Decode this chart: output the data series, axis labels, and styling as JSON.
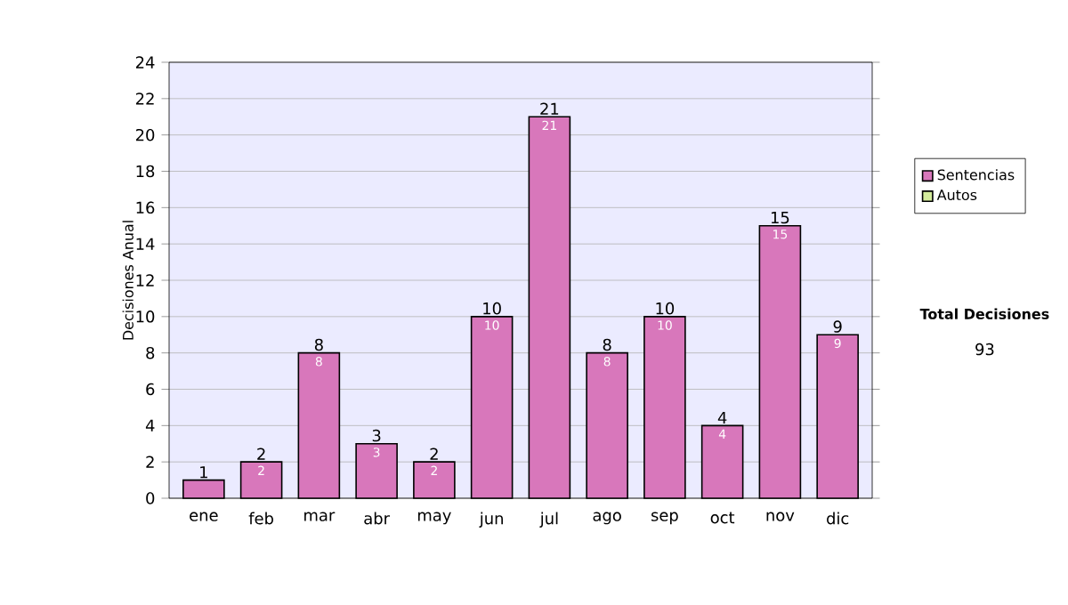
{
  "chart_data": {
    "type": "bar",
    "ylabel": "Decisiones Anual",
    "categories": [
      "ene",
      "feb",
      "mar",
      "abr",
      "may",
      "jun",
      "jul",
      "ago",
      "sep",
      "oct",
      "nov",
      "dic"
    ],
    "series": [
      {
        "name": "Sentencias",
        "color": "#d877bb",
        "values": [
          1,
          2,
          8,
          3,
          2,
          10,
          21,
          8,
          10,
          4,
          15,
          9
        ],
        "value_labels": [
          null,
          "2",
          "8",
          "3",
          "2",
          "10",
          "21",
          "8",
          "10",
          "4",
          "15",
          "9"
        ]
      },
      {
        "name": "Autos",
        "color": "#d4ec9c",
        "values": [
          0,
          0,
          0,
          0,
          0,
          0,
          0,
          0,
          0,
          0,
          0,
          0
        ]
      }
    ],
    "stacked": true,
    "totals": [
      "1",
      "2",
      "8",
      "3",
      "2",
      "10",
      "21",
      "8",
      "10",
      "4",
      "15",
      "9"
    ],
    "ylim": [
      0,
      24
    ],
    "yticks": [
      0,
      2,
      4,
      6,
      8,
      10,
      12,
      14,
      16,
      18,
      20,
      22,
      24
    ],
    "grid": "y",
    "legend": "right",
    "annotations": [
      "Total Decisiones",
      "93"
    ]
  }
}
